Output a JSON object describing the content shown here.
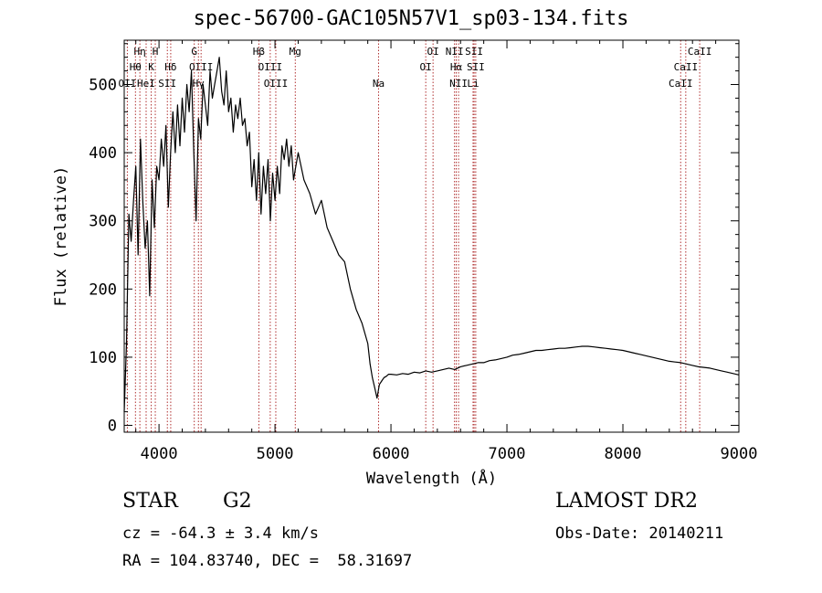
{
  "title": "spec-56700-GAC105N57V1_sp03-134.fits",
  "info": {
    "class": "STAR",
    "subclass": "G2",
    "survey": "LAMOST DR2",
    "redshift": "cz = -64.3 ± 3.4 km/s",
    "obs_date": "Obs-Date: 20140211",
    "radec": "RA = 104.83740, DEC =  58.31697"
  },
  "colors": {
    "line": "#000000",
    "marker": "#b03030"
  },
  "chart_data": {
    "type": "line",
    "xlabel": "Wavelength (Å)",
    "ylabel": "Flux (relative)",
    "xlim": [
      3700,
      9000
    ],
    "ylim": [
      -10,
      565
    ],
    "xticks": [
      4000,
      5000,
      6000,
      7000,
      8000,
      9000
    ],
    "yticks": [
      0,
      100,
      200,
      300,
      400,
      500
    ],
    "grid": false,
    "series": [
      {
        "x": [
          3700,
          3720,
          3740,
          3760,
          3780,
          3800,
          3820,
          3840,
          3860,
          3880,
          3900,
          3920,
          3940,
          3960,
          3980,
          4000,
          4020,
          4040,
          4060,
          4080,
          4100,
          4120,
          4140,
          4160,
          4180,
          4200,
          4220,
          4240,
          4260,
          4280,
          4300,
          4320,
          4340,
          4360,
          4380,
          4400,
          4420,
          4440,
          4460,
          4480,
          4500,
          4520,
          4540,
          4560,
          4580,
          4600,
          4620,
          4640,
          4660,
          4680,
          4700,
          4720,
          4740,
          4760,
          4780,
          4800,
          4820,
          4840,
          4860,
          4880,
          4900,
          4920,
          4940,
          4960,
          4980,
          5000,
          5020,
          5040,
          5060,
          5080,
          5100,
          5120,
          5140,
          5160,
          5180,
          5200,
          5250,
          5300,
          5350,
          5400,
          5450,
          5500,
          5550,
          5600,
          5650,
          5700,
          5750,
          5800,
          5820,
          5840,
          5860,
          5880,
          5890,
          5900,
          5920,
          5940,
          5960,
          5980,
          6000,
          6050,
          6100,
          6150,
          6200,
          6250,
          6300,
          6350,
          6400,
          6450,
          6500,
          6550,
          6600,
          6650,
          6700,
          6750,
          6800,
          6850,
          6900,
          6950,
          7000,
          7050,
          7100,
          7150,
          7200,
          7250,
          7300,
          7350,
          7400,
          7450,
          7500,
          7550,
          7600,
          7650,
          7700,
          7750,
          7800,
          7850,
          7900,
          7950,
          8000,
          8050,
          8100,
          8150,
          8200,
          8250,
          8300,
          8350,
          8400,
          8450,
          8500,
          8550,
          8600,
          8650,
          8700,
          8750,
          8800,
          8850,
          8900,
          8950,
          9000
        ],
        "y": [
          20,
          120,
          310,
          270,
          330,
          380,
          250,
          420,
          330,
          260,
          300,
          190,
          360,
          290,
          380,
          360,
          420,
          380,
          440,
          320,
          400,
          460,
          400,
          470,
          410,
          480,
          430,
          500,
          460,
          520,
          400,
          300,
          450,
          420,
          500,
          470,
          440,
          520,
          480,
          500,
          520,
          540,
          490,
          470,
          520,
          460,
          480,
          430,
          470,
          450,
          480,
          440,
          450,
          410,
          430,
          350,
          390,
          330,
          400,
          310,
          380,
          340,
          390,
          300,
          370,
          330,
          380,
          340,
          410,
          390,
          420,
          380,
          410,
          360,
          380,
          400,
          360,
          340,
          310,
          330,
          290,
          270,
          250,
          240,
          200,
          170,
          150,
          120,
          90,
          70,
          55,
          40,
          50,
          60,
          65,
          70,
          72,
          75,
          75,
          74,
          76,
          75,
          78,
          77,
          80,
          78,
          80,
          82,
          84,
          82,
          86,
          88,
          90,
          92,
          92,
          95,
          96,
          98,
          100,
          103,
          104,
          106,
          108,
          110,
          110,
          111,
          112,
          113,
          113,
          114,
          115,
          116,
          116,
          115,
          114,
          113,
          112,
          111,
          110,
          108,
          106,
          104,
          102,
          100,
          98,
          96,
          94,
          93,
          92,
          90,
          88,
          86,
          85,
          84,
          82,
          80,
          78,
          76,
          74
        ]
      }
    ],
    "lines": [
      {
        "name": "Hη",
        "wave": 3835,
        "row": 0
      },
      {
        "name": "H",
        "wave": 3968,
        "row": 0
      },
      {
        "name": "Hθ",
        "wave": 3797,
        "row": 1
      },
      {
        "name": "K",
        "wave": 3933,
        "row": 1
      },
      {
        "name": "Hδ",
        "wave": 4101,
        "row": 1
      },
      {
        "name": "OII",
        "wave": 3727,
        "row": 2
      },
      {
        "name": "HeI",
        "wave": 3889,
        "row": 2
      },
      {
        "name": "SII",
        "wave": 4072,
        "row": 2
      },
      {
        "name": "G",
        "wave": 4304,
        "row": 0
      },
      {
        "name": "OIII",
        "wave": 4363,
        "row": 1
      },
      {
        "name": "Hγ",
        "wave": 4340,
        "row": 2
      },
      {
        "name": "Hβ",
        "wave": 4861,
        "row": 0
      },
      {
        "name": "Mg",
        "wave": 5175,
        "row": 0
      },
      {
        "name": "OIII",
        "wave": 4959,
        "row": 1
      },
      {
        "name": "OIII",
        "wave": 5007,
        "row": 2
      },
      {
        "name": "Na",
        "wave": 5893,
        "row": 2
      },
      {
        "name": "OI",
        "wave": 6363,
        "row": 0
      },
      {
        "name": "OI",
        "wave": 6300,
        "row": 1
      },
      {
        "name": "NII",
        "wave": 6548,
        "row": 0
      },
      {
        "name": "SII",
        "wave": 6717,
        "row": 0
      },
      {
        "name": "Hα",
        "wave": 6563,
        "row": 1
      },
      {
        "name": "SII",
        "wave": 6731,
        "row": 1
      },
      {
        "name": "NII",
        "wave": 6583,
        "row": 2
      },
      {
        "name": "Li",
        "wave": 6708,
        "row": 2
      },
      {
        "name": "CaII",
        "wave": 8662,
        "row": 0
      },
      {
        "name": "CaII",
        "wave": 8542,
        "row": 1
      },
      {
        "name": "CaII",
        "wave": 8498,
        "row": 2
      }
    ]
  }
}
